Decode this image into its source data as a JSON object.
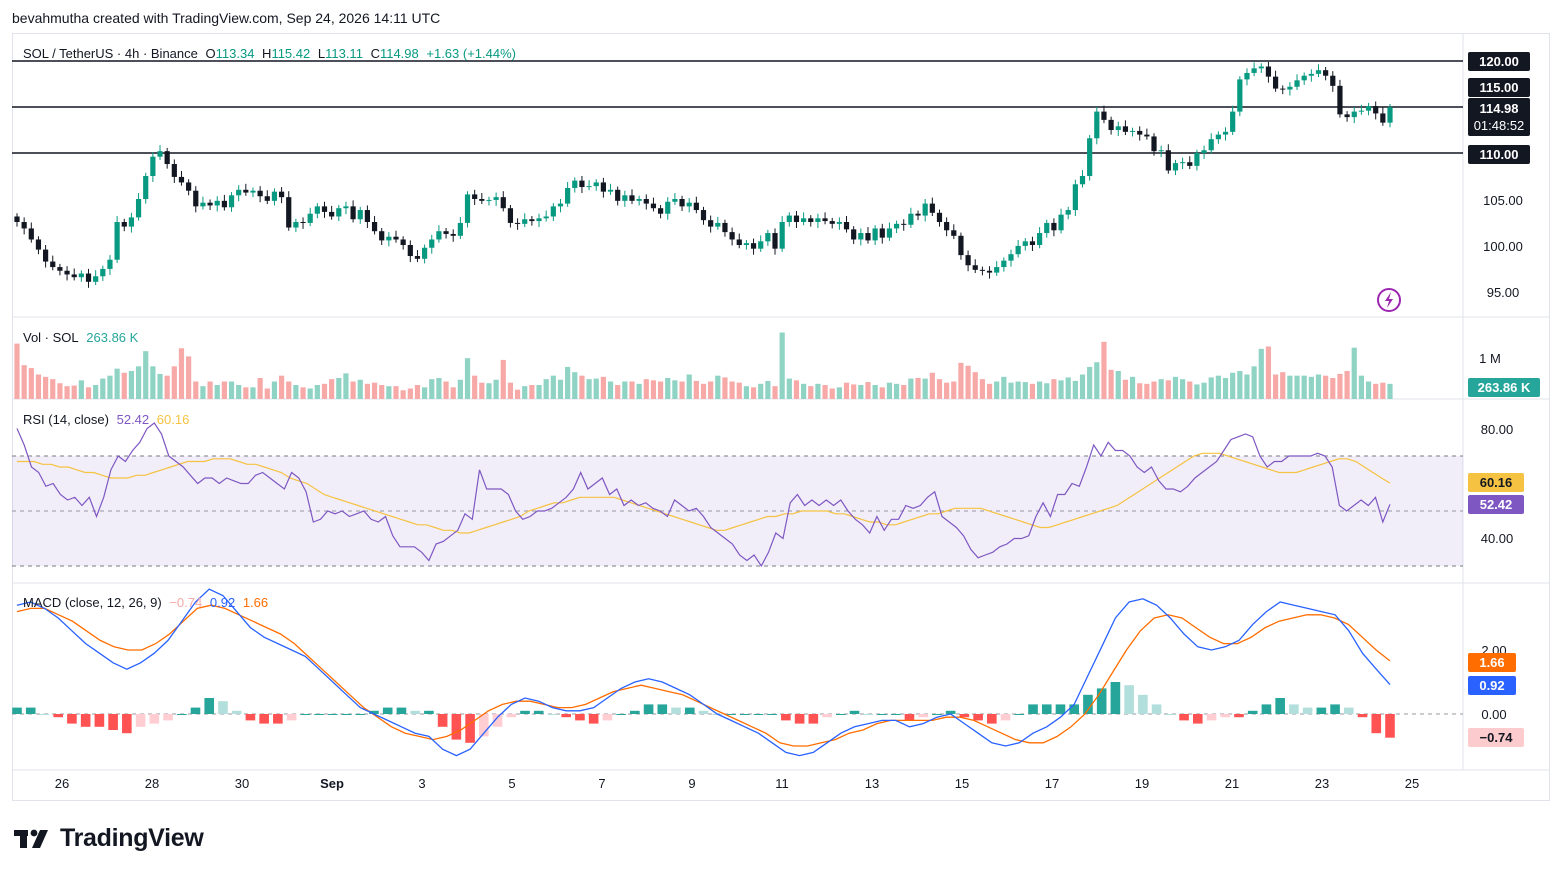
{
  "attribution": "bevahmutha created with TradingView.com, Sep 24, 2026 14:11 UTC",
  "brand": {
    "name": "TradingView",
    "icon": "tradingview-logo-icon"
  },
  "colors": {
    "up": "#089981",
    "down": "#f23645",
    "rsi": "#7e57c2",
    "rsi_ma": "#f5c241",
    "macd": "#2962ff",
    "signal": "#ff6d00",
    "vol_up": "#8fd3c4",
    "vol_down": "#f7a9a7"
  },
  "main": {
    "symbol": "SOL / TetherUS · 4h · Binance",
    "o_label": "O",
    "o": "113.34",
    "h_label": "H",
    "h": "115.42",
    "l_label": "L",
    "l": "113.11",
    "c_label": "C",
    "c": "114.98",
    "change": "+1.63 (+1.44%)",
    "price_ticks": [
      "95.00",
      "100.00",
      "105.00",
      "110.00",
      "115.00",
      "120.00"
    ],
    "price_badge": "114.98",
    "countdown": "01:48:52",
    "level_120": "120.00",
    "level_110": "110.00",
    "lightning_icon": "lightning-icon"
  },
  "volume": {
    "label": "Vol · SOL",
    "value": "263.86 K",
    "tick": "1 M",
    "badge": "263.86 K"
  },
  "rsi": {
    "label": "RSI (14, close)",
    "value": "52.42",
    "ma_value": "60.16",
    "ticks": [
      "80.00",
      "40.00"
    ],
    "badge_rsi": "52.42",
    "badge_ma": "60.16"
  },
  "macd": {
    "label": "MACD (close, 12, 26, 9)",
    "hist": "−0.74",
    "macd": "0.92",
    "signal": "1.66",
    "ticks": [
      "2.00",
      "0.00"
    ],
    "badge_signal": "1.66",
    "badge_macd": "0.92",
    "badge_hist": "−0.74"
  },
  "x_ticks": [
    "26",
    "28",
    "30",
    "Sep",
    "3",
    "5",
    "7",
    "9",
    "11",
    "13",
    "15",
    "17",
    "19",
    "21",
    "23",
    "25"
  ],
  "chart_data": {
    "type": "candlestick",
    "interval": "4h",
    "x_range": [
      "Aug 25",
      "Sep 24"
    ],
    "ylim": [
      94,
      121
    ],
    "horizontal_levels": [
      120,
      115,
      110
    ],
    "close_series": [
      102.5,
      101.8,
      100.6,
      99.5,
      98.2,
      97.6,
      97.2,
      96.8,
      96.5,
      96.9,
      96.0,
      96.6,
      97.4,
      98.4,
      102.5,
      102.0,
      103.0,
      105.0,
      107.5,
      109.6,
      110.2,
      108.8,
      107.4,
      106.8,
      105.9,
      104.2,
      104.6,
      104.3,
      104.8,
      104.1,
      105.4,
      106.0,
      105.7,
      105.9,
      105.3,
      104.8,
      105.8,
      105.2,
      101.9,
      102.5,
      102.4,
      103.4,
      104.2,
      103.6,
      103.1,
      104.0,
      104.2,
      102.8,
      103.8,
      102.5,
      101.5,
      100.5,
      100.9,
      100.6,
      100.0,
      98.8,
      98.5,
      99.7,
      100.6,
      101.5,
      101.2,
      101.0,
      102.4,
      105.5,
      105.0,
      104.8,
      104.9,
      105.2,
      104.0,
      102.4,
      102.3,
      102.8,
      102.6,
      102.9,
      103.1,
      104.2,
      104.5,
      106.2,
      107.0,
      106.3,
      106.4,
      106.8,
      105.8,
      106.0,
      104.8,
      105.4,
      104.8,
      105.0,
      104.5,
      104.0,
      103.4,
      104.7,
      105.0,
      104.2,
      104.6,
      103.8,
      102.7,
      102.0,
      102.4,
      101.4,
      100.6,
      100.0,
      100.2,
      99.6,
      100.4,
      101.3,
      99.6,
      102.5,
      103.2,
      102.5,
      102.9,
      102.5,
      102.9,
      102.6,
      102.3,
      102.5,
      101.7,
      100.6,
      101.3,
      100.5,
      101.8,
      100.8,
      101.8,
      102.3,
      102.2,
      103.4,
      103.2,
      104.5,
      103.5,
      102.5,
      101.6,
      101.0,
      98.9,
      97.8,
      97.3,
      97.2,
      97.0,
      97.6,
      98.3,
      99.0,
      99.9,
      100.4,
      100.0,
      101.3,
      102.4,
      101.6,
      103.3,
      103.8,
      106.6,
      107.5,
      111.6,
      114.5,
      113.6,
      112.5,
      112.9,
      112.3,
      112.4,
      112.0,
      111.8,
      110.2,
      110.3,
      108.1,
      108.9,
      109.0,
      108.6,
      110.0,
      110.3,
      111.5,
      112.0,
      112.3,
      114.5,
      118.0,
      118.7,
      119.2,
      119.4,
      118.3,
      117.0,
      116.9,
      117.2,
      117.9,
      118.4,
      118.6,
      119.0,
      118.4,
      117.3,
      114.2,
      113.9,
      114.5,
      114.6,
      115.1,
      114.3,
      113.3,
      114.98
    ],
    "volume_series": [
      0.95,
      0.58,
      0.53,
      0.42,
      0.38,
      0.34,
      0.27,
      0.22,
      0.23,
      0.32,
      0.2,
      0.24,
      0.35,
      0.4,
      0.52,
      0.45,
      0.48,
      0.56,
      0.82,
      0.56,
      0.43,
      0.4,
      0.56,
      0.87,
      0.73,
      0.3,
      0.22,
      0.3,
      0.24,
      0.3,
      0.3,
      0.24,
      0.2,
      0.2,
      0.36,
      0.18,
      0.3,
      0.4,
      0.3,
      0.24,
      0.2,
      0.18,
      0.24,
      0.26,
      0.34,
      0.36,
      0.44,
      0.3,
      0.33,
      0.26,
      0.28,
      0.24,
      0.22,
      0.22,
      0.15,
      0.18,
      0.24,
      0.2,
      0.34,
      0.36,
      0.3,
      0.2,
      0.33,
      0.7,
      0.4,
      0.28,
      0.27,
      0.33,
      0.67,
      0.28,
      0.16,
      0.22,
      0.24,
      0.24,
      0.34,
      0.4,
      0.33,
      0.55,
      0.46,
      0.4,
      0.34,
      0.35,
      0.38,
      0.3,
      0.24,
      0.3,
      0.3,
      0.26,
      0.34,
      0.32,
      0.3,
      0.36,
      0.32,
      0.3,
      0.42,
      0.31,
      0.26,
      0.3,
      0.4,
      0.37,
      0.3,
      0.28,
      0.22,
      0.2,
      0.26,
      0.31,
      0.22,
      1.14,
      0.35,
      0.32,
      0.26,
      0.22,
      0.26,
      0.24,
      0.18,
      0.2,
      0.28,
      0.25,
      0.24,
      0.29,
      0.24,
      0.2,
      0.28,
      0.26,
      0.24,
      0.35,
      0.36,
      0.35,
      0.45,
      0.34,
      0.28,
      0.3,
      0.62,
      0.57,
      0.46,
      0.34,
      0.26,
      0.3,
      0.38,
      0.28,
      0.3,
      0.29,
      0.26,
      0.3,
      0.27,
      0.34,
      0.32,
      0.37,
      0.31,
      0.42,
      0.55,
      0.63,
      0.98,
      0.5,
      0.48,
      0.33,
      0.38,
      0.27,
      0.26,
      0.3,
      0.34,
      0.32,
      0.38,
      0.34,
      0.3,
      0.25,
      0.28,
      0.37,
      0.4,
      0.36,
      0.45,
      0.48,
      0.42,
      0.56,
      0.86,
      0.9,
      0.42,
      0.46,
      0.4,
      0.4,
      0.4,
      0.38,
      0.42,
      0.4,
      0.36,
      0.43,
      0.48,
      0.88,
      0.4,
      0.3,
      0.26,
      0.28,
      0.26,
      0.34,
      0.46,
      0.26
    ],
    "rsi_series": [
      80,
      74,
      66,
      64,
      59,
      60,
      56,
      54,
      55,
      52,
      55,
      48,
      55,
      65,
      70,
      68,
      72,
      75,
      80,
      82,
      78,
      70,
      68,
      66,
      63,
      60,
      62,
      62,
      60,
      62,
      61,
      60,
      60,
      63,
      64,
      62,
      60,
      58,
      64,
      62,
      57,
      46,
      47,
      50,
      49,
      50,
      48,
      49,
      50,
      47,
      46,
      48,
      41,
      37,
      37,
      37,
      35,
      32,
      38,
      39,
      41,
      43,
      49,
      47,
      65,
      58,
      58,
      58,
      56,
      50,
      47,
      48,
      50,
      50,
      51,
      53,
      55,
      58,
      64,
      58,
      60,
      62,
      56,
      58,
      52,
      54,
      52,
      53,
      51,
      50,
      48,
      54,
      52,
      50,
      51,
      48,
      44,
      42,
      40,
      38,
      34,
      32,
      34,
      30,
      35,
      42,
      40,
      53,
      56,
      52,
      54,
      52,
      54,
      52,
      54,
      50,
      47,
      45,
      42,
      48,
      43,
      47,
      47,
      52,
      51,
      52,
      55,
      57,
      48,
      46,
      44,
      41,
      36,
      33,
      34,
      35,
      37,
      38,
      40,
      40,
      41,
      48,
      53,
      48,
      56,
      56,
      60,
      59,
      66,
      74,
      70,
      75,
      72,
      72,
      70,
      66,
      64,
      66,
      61,
      58,
      58,
      57,
      59,
      62,
      64,
      66,
      68,
      72,
      76,
      77,
      78,
      77,
      70,
      66,
      68,
      68,
      70,
      70,
      70,
      70,
      71,
      70,
      66,
      52,
      50,
      52,
      54,
      52,
      55,
      46,
      52.42
    ],
    "rsi_ma_series": [
      68,
      68,
      68,
      67,
      67,
      66,
      66,
      65,
      64,
      64,
      63,
      62,
      62,
      62,
      63,
      63,
      64,
      65,
      66,
      67,
      68,
      68,
      68,
      69,
      69,
      69,
      68,
      67,
      67,
      66,
      65,
      64,
      62,
      61,
      60,
      58,
      56,
      55,
      54,
      53,
      52,
      51,
      50,
      49,
      48,
      47,
      46,
      45,
      45,
      44,
      43,
      43,
      42,
      42,
      43,
      44,
      45,
      46,
      47,
      48,
      50,
      51,
      52,
      53,
      53,
      54,
      55,
      55,
      55,
      55,
      55,
      54,
      53,
      52,
      51,
      50,
      49,
      48,
      47,
      46,
      45,
      44,
      43,
      43,
      44,
      45,
      46,
      47,
      48,
      48,
      49,
      49,
      50,
      50,
      50,
      50,
      49,
      49,
      48,
      47,
      46,
      46,
      45,
      45,
      46,
      47,
      48,
      49,
      49,
      50,
      51,
      51,
      51,
      51,
      50,
      49,
      48,
      47,
      46,
      45,
      44,
      44,
      45,
      46,
      47,
      48,
      49,
      50,
      51,
      52,
      54,
      56,
      58,
      60,
      62,
      64,
      66,
      68,
      70,
      71,
      71,
      71,
      70,
      69,
      68,
      67,
      66,
      65,
      64,
      64,
      64,
      65,
      66,
      67,
      68,
      69,
      69,
      68,
      66,
      64,
      62,
      60.16
    ],
    "macd_series": [
      3.4,
      3.5,
      3.3,
      3.0,
      2.6,
      2.2,
      1.9,
      1.6,
      1.4,
      1.6,
      1.9,
      2.3,
      2.9,
      3.5,
      3.9,
      3.7,
      3.2,
      2.7,
      2.4,
      2.2,
      2.0,
      1.8,
      1.4,
      1.0,
      0.6,
      0.2,
      0.0,
      -0.2,
      -0.4,
      -0.6,
      -0.7,
      -1.1,
      -1.3,
      -1.1,
      -0.6,
      -0.1,
      0.3,
      0.5,
      0.4,
      0.2,
      0.1,
      0.1,
      0.2,
      0.5,
      0.8,
      1.0,
      1.1,
      1.0,
      0.8,
      0.6,
      0.3,
      0.0,
      -0.2,
      -0.4,
      -0.6,
      -0.9,
      -1.2,
      -1.3,
      -1.2,
      -0.9,
      -0.6,
      -0.4,
      -0.3,
      -0.2,
      -0.2,
      -0.4,
      -0.3,
      -0.1,
      0.0,
      -0.3,
      -0.6,
      -0.9,
      -1.0,
      -0.9,
      -0.6,
      -0.4,
      -0.1,
      0.3,
      1.2,
      2.1,
      3.0,
      3.5,
      3.6,
      3.4,
      3.0,
      2.5,
      2.1,
      2.0,
      2.1,
      2.3,
      2.8,
      3.2,
      3.5,
      3.4,
      3.3,
      3.2,
      3.1,
      2.6,
      1.9,
      1.4,
      0.92
    ],
    "signal_series": [
      3.2,
      3.3,
      3.3,
      3.1,
      2.9,
      2.6,
      2.3,
      2.1,
      2.0,
      2.0,
      2.2,
      2.5,
      2.9,
      3.3,
      3.4,
      3.3,
      3.1,
      2.9,
      2.7,
      2.5,
      2.2,
      1.8,
      1.4,
      1.0,
      0.6,
      0.2,
      -0.1,
      -0.4,
      -0.6,
      -0.7,
      -0.8,
      -0.7,
      -0.5,
      -0.2,
      0.1,
      0.3,
      0.4,
      0.4,
      0.3,
      0.2,
      0.2,
      0.3,
      0.5,
      0.7,
      0.8,
      0.9,
      0.8,
      0.7,
      0.6,
      0.4,
      0.2,
      0.0,
      -0.2,
      -0.4,
      -0.6,
      -0.9,
      -1.0,
      -1.0,
      -0.9,
      -0.8,
      -0.6,
      -0.5,
      -0.3,
      -0.2,
      -0.2,
      -0.2,
      -0.2,
      -0.1,
      -0.1,
      -0.2,
      -0.4,
      -0.6,
      -0.8,
      -0.9,
      -0.9,
      -0.7,
      -0.4,
      0.0,
      0.6,
      1.3,
      2.0,
      2.6,
      3.0,
      3.1,
      3.0,
      2.7,
      2.4,
      2.2,
      2.2,
      2.4,
      2.7,
      2.9,
      3.0,
      3.1,
      3.1,
      3.0,
      2.8,
      2.4,
      2.0,
      1.66
    ],
    "hist_series": [
      0.2,
      0.2,
      0.0,
      -0.1,
      -0.3,
      -0.4,
      -0.4,
      -0.5,
      -0.6,
      -0.4,
      -0.3,
      -0.2,
      0.0,
      0.2,
      0.5,
      0.4,
      0.1,
      -0.2,
      -0.3,
      -0.3,
      -0.2,
      0.0,
      0.0,
      0.0,
      0.0,
      0.0,
      0.1,
      0.2,
      0.2,
      0.1,
      0.1,
      -0.4,
      -0.8,
      -0.9,
      -0.7,
      -0.4,
      -0.1,
      0.1,
      0.1,
      0.0,
      -0.1,
      -0.2,
      -0.3,
      -0.2,
      0.0,
      0.1,
      0.3,
      0.3,
      0.2,
      0.2,
      0.1,
      0.0,
      0.0,
      0.0,
      0.0,
      0.0,
      -0.2,
      -0.3,
      -0.3,
      -0.1,
      0.0,
      0.1,
      0.0,
      0.0,
      0.0,
      -0.2,
      -0.1,
      0.0,
      0.1,
      -0.1,
      -0.2,
      -0.3,
      -0.2,
      0.0,
      0.3,
      0.3,
      0.3,
      0.3,
      0.6,
      0.8,
      1.0,
      0.9,
      0.6,
      0.3,
      0.0,
      -0.2,
      -0.3,
      -0.2,
      -0.1,
      -0.1,
      0.1,
      0.3,
      0.5,
      0.3,
      0.2,
      0.2,
      0.3,
      0.2,
      -0.1,
      -0.6,
      -0.74
    ]
  }
}
